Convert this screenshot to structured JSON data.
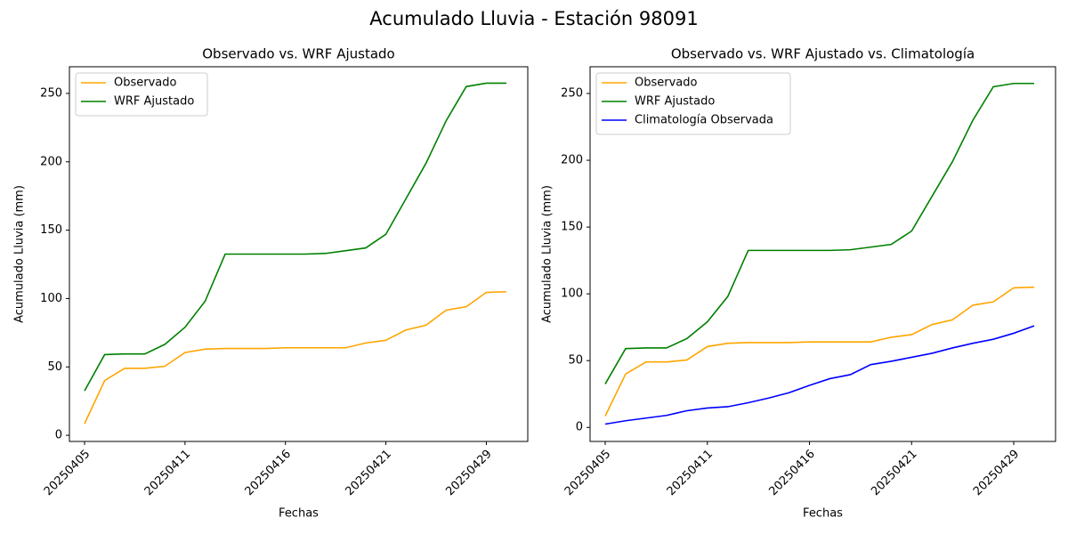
{
  "suptitle": "Acumulado Lluvia - Estación 98091",
  "chart_data": [
    {
      "type": "line",
      "title": "Observado vs. WRF Ajustado",
      "x_label": "Fechas",
      "y_label": "Acumulado Lluvia (mm)",
      "categories": [
        "20250405",
        null,
        null,
        null,
        null,
        "20250411",
        null,
        null,
        null,
        null,
        "20250416",
        null,
        null,
        null,
        null,
        "20250421",
        null,
        null,
        null,
        null,
        "20250429",
        null
      ],
      "series": [
        {
          "name": "Observado",
          "color": "orange",
          "values": [
            8.5,
            40,
            49,
            49,
            50.5,
            60.5,
            63,
            63.5,
            63.5,
            63.5,
            64,
            64,
            64,
            64,
            67.5,
            69.5,
            77,
            80.5,
            91.5,
            94,
            104.5,
            105
          ]
        },
        {
          "name": "WRF Ajustado",
          "color": "green",
          "values": [
            32.5,
            59,
            59.5,
            59.5,
            66.5,
            79,
            98,
            132.5,
            132.5,
            132.5,
            132.5,
            132.5,
            133,
            135,
            137,
            147,
            173,
            199,
            230,
            255,
            257.5,
            257.5
          ]
        }
      ],
      "ylim": [
        -4.5,
        269.5
      ],
      "yticks": [
        0,
        50,
        100,
        150,
        200,
        250
      ],
      "legend": "upper left"
    },
    {
      "type": "line",
      "title": "Observado vs. WRF Ajustado vs. Climatología",
      "x_label": "Fechas",
      "y_label": "Acumulado Lluvia (mm)",
      "categories": [
        "20250405",
        null,
        null,
        null,
        null,
        "20250411",
        null,
        null,
        null,
        null,
        "20250416",
        null,
        null,
        null,
        null,
        "20250421",
        null,
        null,
        null,
        null,
        "20250429",
        null
      ],
      "series": [
        {
          "name": "Observado",
          "color": "orange",
          "values": [
            8.5,
            40,
            49,
            49,
            50.5,
            60.5,
            63,
            63.5,
            63.5,
            63.5,
            64,
            64,
            64,
            64,
            67.5,
            69.5,
            77,
            80.5,
            91.5,
            94,
            104.5,
            105
          ]
        },
        {
          "name": "WRF Ajustado",
          "color": "green",
          "values": [
            32.5,
            59,
            59.5,
            59.5,
            66.5,
            79,
            98,
            132.5,
            132.5,
            132.5,
            132.5,
            132.5,
            133,
            135,
            137,
            147,
            173,
            199,
            230,
            255,
            257.5,
            257.5
          ]
        },
        {
          "name": "Climatología Observada",
          "color": "blue",
          "values": [
            2.5,
            5,
            7,
            9,
            12.5,
            14.5,
            15.5,
            18.5,
            22,
            26,
            31.5,
            36.5,
            39.5,
            47,
            49.5,
            52.5,
            55.5,
            59.5,
            63,
            66,
            70.5,
            76
          ]
        }
      ],
      "ylim": [
        -10.5,
        270
      ],
      "yticks": [
        0,
        50,
        100,
        150,
        200,
        250
      ],
      "legend": "upper left"
    }
  ]
}
